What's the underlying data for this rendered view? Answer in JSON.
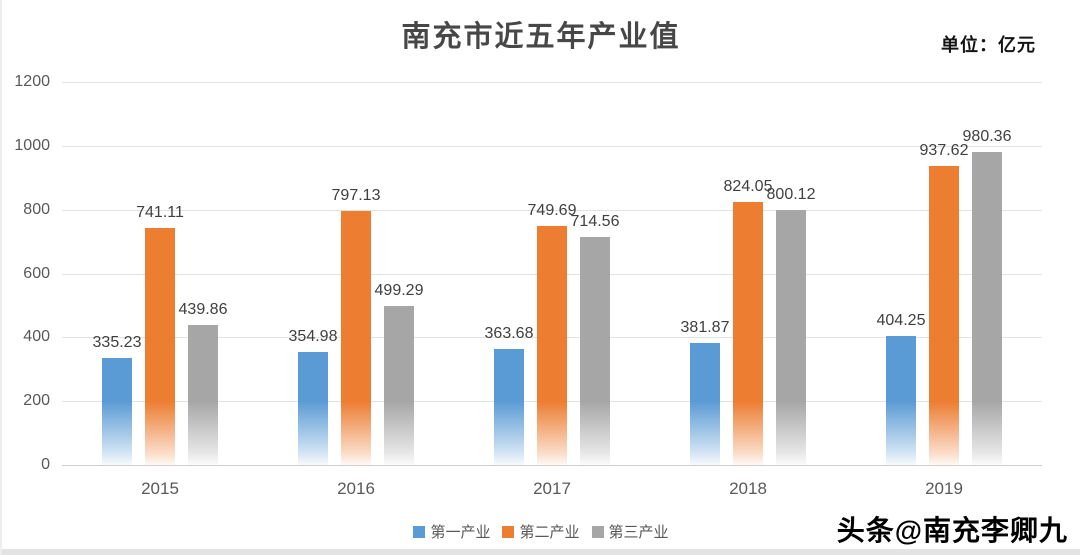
{
  "title": "南充市近五年产业值",
  "unit_label": "单位：亿元",
  "watermark": "头条@南充李卿九",
  "colors": {
    "series_primary": "#5B9BD5",
    "series_secondary": "#ED7D31",
    "series_tertiary": "#A6A6A6",
    "gridline": "#e2e2e2",
    "axis_text": "#595959",
    "value_text": "#404040"
  },
  "chart_data": {
    "type": "bar",
    "title": "南充市近五年产业值",
    "unit": "亿元",
    "categories": [
      "2015",
      "2016",
      "2017",
      "2018",
      "2019"
    ],
    "series": [
      {
        "name": "第一产业",
        "color": "#5B9BD5",
        "values": [
          335.23,
          354.98,
          363.68,
          381.87,
          404.25
        ]
      },
      {
        "name": "第二产业",
        "color": "#ED7D31",
        "values": [
          741.11,
          797.13,
          749.69,
          824.05,
          937.62
        ]
      },
      {
        "name": "第三产业",
        "color": "#A6A6A6",
        "values": [
          439.86,
          499.29,
          714.56,
          800.12,
          980.36
        ]
      }
    ],
    "ylim": [
      0,
      1200
    ],
    "ytick_step": 200,
    "yticks": [
      0,
      200,
      400,
      600,
      800,
      1000,
      1200
    ],
    "grid": true,
    "legend_position": "bottom",
    "value_labels": true,
    "value_label_decimals": 2
  }
}
